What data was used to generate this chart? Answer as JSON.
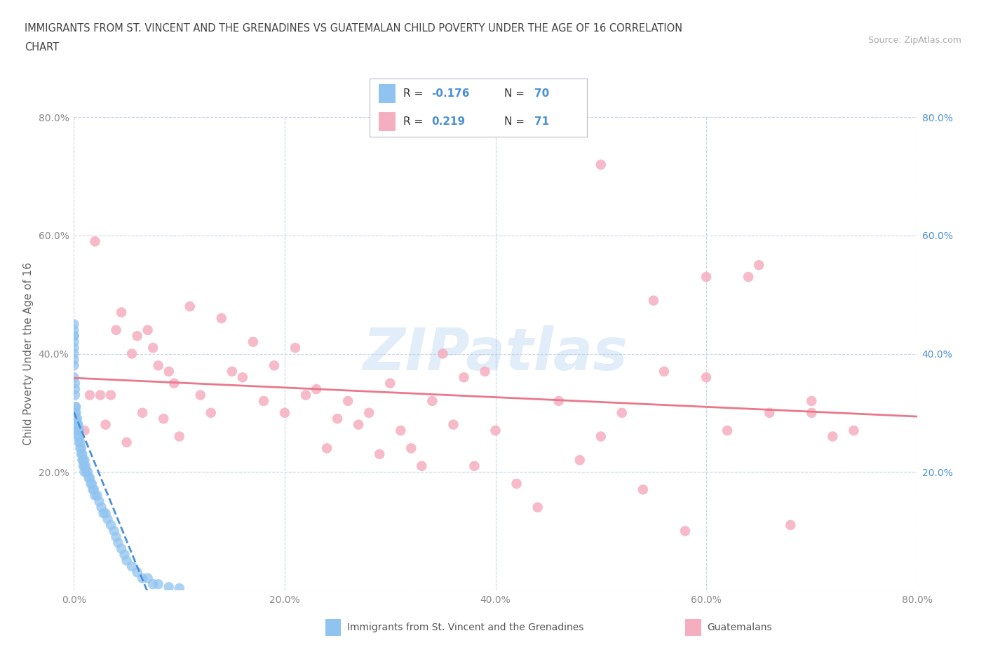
{
  "title_line1": "IMMIGRANTS FROM ST. VINCENT AND THE GRENADINES VS GUATEMALAN CHILD POVERTY UNDER THE AGE OF 16 CORRELATION",
  "title_line2": "CHART",
  "source_text": "Source: ZipAtlas.com",
  "ylabel": "Child Poverty Under the Age of 16",
  "xlim": [
    0.0,
    0.8
  ],
  "ylim": [
    0.0,
    0.8
  ],
  "x_tick_labels": [
    "0.0%",
    "20.0%",
    "40.0%",
    "60.0%",
    "80.0%"
  ],
  "y_tick_labels_left": [
    "",
    "20.0%",
    "40.0%",
    "60.0%",
    "80.0%"
  ],
  "y_tick_labels_right": [
    "20.0%",
    "40.0%",
    "60.0%",
    "80.0%"
  ],
  "watermark": "ZIPatlas",
  "color_blue_scatter": "#90c4f0",
  "color_pink_scatter": "#f5aec0",
  "color_blue_line": "#4a90d9",
  "color_pink_line": "#e8788a",
  "grid_color": "#c8d4e8",
  "grid_style": "--",
  "background_color": "#ffffff",
  "tick_color": "#888888",
  "right_tick_color": "#4a90d9",
  "legend_bottom_blue_label": "Immigrants from St. Vincent and the Grenadines",
  "legend_bottom_pink_label": "Guatemalans",
  "blue_x": [
    0.0,
    0.0,
    0.0,
    0.0,
    0.0,
    0.0,
    0.0,
    0.0,
    0.0,
    0.0,
    0.001,
    0.001,
    0.001,
    0.001,
    0.001,
    0.002,
    0.002,
    0.002,
    0.002,
    0.003,
    0.003,
    0.003,
    0.004,
    0.004,
    0.004,
    0.005,
    0.005,
    0.005,
    0.006,
    0.006,
    0.007,
    0.007,
    0.008,
    0.008,
    0.009,
    0.009,
    0.01,
    0.01,
    0.01,
    0.011,
    0.012,
    0.013,
    0.014,
    0.015,
    0.016,
    0.017,
    0.018,
    0.019,
    0.02,
    0.022,
    0.024,
    0.026,
    0.028,
    0.03,
    0.032,
    0.035,
    0.038,
    0.04,
    0.042,
    0.045,
    0.048,
    0.05,
    0.055,
    0.06,
    0.065,
    0.07,
    0.075,
    0.08,
    0.09,
    0.1
  ],
  "blue_y": [
    0.36,
    0.38,
    0.39,
    0.4,
    0.41,
    0.42,
    0.43,
    0.44,
    0.45,
    0.43,
    0.3,
    0.31,
    0.33,
    0.34,
    0.35,
    0.28,
    0.29,
    0.3,
    0.31,
    0.27,
    0.28,
    0.29,
    0.26,
    0.27,
    0.28,
    0.25,
    0.26,
    0.27,
    0.24,
    0.25,
    0.23,
    0.24,
    0.22,
    0.23,
    0.21,
    0.22,
    0.2,
    0.21,
    0.22,
    0.21,
    0.2,
    0.2,
    0.19,
    0.19,
    0.18,
    0.18,
    0.17,
    0.17,
    0.16,
    0.16,
    0.15,
    0.14,
    0.13,
    0.13,
    0.12,
    0.11,
    0.1,
    0.09,
    0.08,
    0.07,
    0.06,
    0.05,
    0.04,
    0.03,
    0.02,
    0.02,
    0.01,
    0.01,
    0.005,
    0.003
  ],
  "pink_x": [
    0.01,
    0.015,
    0.02,
    0.025,
    0.03,
    0.035,
    0.04,
    0.045,
    0.05,
    0.055,
    0.06,
    0.065,
    0.07,
    0.075,
    0.08,
    0.085,
    0.09,
    0.095,
    0.1,
    0.11,
    0.12,
    0.13,
    0.14,
    0.15,
    0.16,
    0.17,
    0.18,
    0.19,
    0.2,
    0.21,
    0.22,
    0.23,
    0.24,
    0.25,
    0.26,
    0.27,
    0.28,
    0.29,
    0.3,
    0.31,
    0.32,
    0.33,
    0.34,
    0.35,
    0.36,
    0.37,
    0.38,
    0.39,
    0.4,
    0.42,
    0.44,
    0.46,
    0.48,
    0.5,
    0.52,
    0.54,
    0.56,
    0.58,
    0.6,
    0.62,
    0.64,
    0.66,
    0.68,
    0.7,
    0.72,
    0.74,
    0.5,
    0.55,
    0.6,
    0.65,
    0.7
  ],
  "pink_y": [
    0.27,
    0.33,
    0.59,
    0.33,
    0.28,
    0.33,
    0.44,
    0.47,
    0.25,
    0.4,
    0.43,
    0.3,
    0.44,
    0.41,
    0.38,
    0.29,
    0.37,
    0.35,
    0.26,
    0.48,
    0.33,
    0.3,
    0.46,
    0.37,
    0.36,
    0.42,
    0.32,
    0.38,
    0.3,
    0.41,
    0.33,
    0.34,
    0.24,
    0.29,
    0.32,
    0.28,
    0.3,
    0.23,
    0.35,
    0.27,
    0.24,
    0.21,
    0.32,
    0.4,
    0.28,
    0.36,
    0.21,
    0.37,
    0.27,
    0.18,
    0.14,
    0.32,
    0.22,
    0.26,
    0.3,
    0.17,
    0.37,
    0.1,
    0.36,
    0.27,
    0.53,
    0.3,
    0.11,
    0.32,
    0.26,
    0.27,
    0.72,
    0.49,
    0.53,
    0.55,
    0.3
  ]
}
